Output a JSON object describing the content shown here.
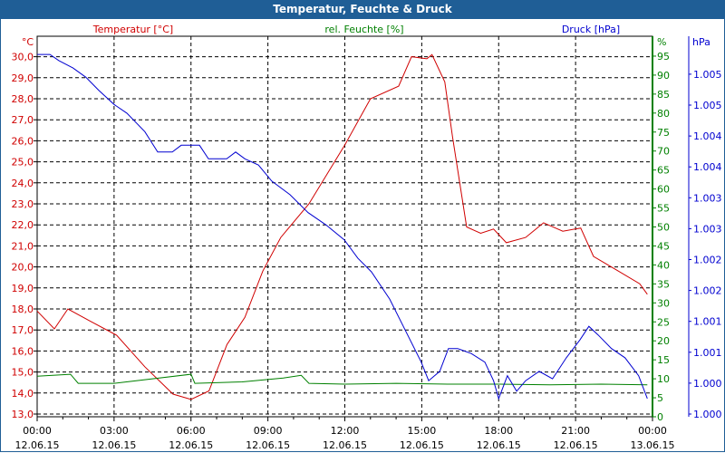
{
  "title": "Temperatur, Feuchte & Druck",
  "chart_data": {
    "type": "line",
    "title": "Temperatur, Feuchte & Druck",
    "xlim": [
      0,
      24
    ],
    "x_ticks": [
      {
        "time": "00:00",
        "date": "12.06.15"
      },
      {
        "time": "03:00",
        "date": "12.06.15"
      },
      {
        "time": "06:00",
        "date": "12.06.15"
      },
      {
        "time": "09:00",
        "date": "12.06.15"
      },
      {
        "time": "12:00",
        "date": "12.06.15"
      },
      {
        "time": "15:00",
        "date": "12.06.15"
      },
      {
        "time": "18:00",
        "date": "12.06.15"
      },
      {
        "time": "21:00",
        "date": "12.06.15"
      },
      {
        "time": "00:00",
        "date": "13.06.15"
      }
    ],
    "grid": true,
    "axes": {
      "temp": {
        "label": "Temperatur [°C]",
        "unit": "°C",
        "color": "#d00000",
        "ticks": [
          "13,0",
          "14,0",
          "15,0",
          "16,0",
          "17,0",
          "18,0",
          "19,0",
          "20,0",
          "21,0",
          "22,0",
          "23,0",
          "24,0",
          "25,0",
          "26,0",
          "27,0",
          "28,0",
          "29,0",
          "30,0"
        ]
      },
      "hum": {
        "label": "rel. Feuchte [%]",
        "unit": "%",
        "color": "#008000",
        "ticks": [
          "0",
          "5",
          "10",
          "15",
          "20",
          "25",
          "30",
          "35",
          "40",
          "45",
          "50",
          "55",
          "60",
          "65",
          "70",
          "75",
          "80",
          "85",
          "90",
          "95"
        ]
      },
      "press": {
        "label": "Druck [hPa]",
        "unit": "hPa",
        "color": "#0000d0",
        "ticks": [
          "1.000",
          "1.000",
          "1.001",
          "1.001",
          "1.002",
          "1.002",
          "1.003",
          "1.003",
          "1.004",
          "1.004",
          "1.005",
          "1.005"
        ]
      }
    },
    "series": [
      {
        "name": "Temperatur",
        "axis": "temp",
        "color": "#d00000",
        "x": [
          0,
          0.67,
          1.2,
          2.1,
          3.1,
          4.2,
          5.3,
          6.0,
          6.7,
          7.4,
          8.1,
          8.8,
          9.5,
          10.6,
          12.0,
          13.0,
          14.1,
          14.6,
          15.2,
          15.4,
          15.9,
          16.2,
          16.75,
          17.3,
          17.8,
          18.3,
          19.05,
          19.75,
          20.5,
          21.2,
          21.7,
          22.6,
          23.5,
          23.8
        ],
        "y": [
          17.9,
          17.05,
          18.0,
          17.4,
          16.75,
          15.25,
          13.95,
          13.7,
          14.1,
          16.3,
          17.6,
          19.8,
          21.4,
          23.0,
          25.8,
          28.0,
          28.6,
          30.0,
          29.9,
          30.1,
          28.8,
          26.2,
          21.9,
          21.6,
          21.8,
          21.15,
          21.4,
          22.1,
          21.7,
          21.85,
          20.5,
          19.85,
          19.2,
          18.7
        ]
      },
      {
        "name": "rel. Feuchte",
        "axis": "hum",
        "color": "#008000",
        "x": [
          0,
          1.3,
          1.6,
          3.0,
          6.0,
          6.0,
          6.15,
          8.0,
          9.6,
          10.3,
          10.6,
          12,
          14,
          16,
          18,
          20,
          22,
          23.8
        ],
        "y": [
          10.7,
          11.2,
          8.8,
          8.8,
          11.2,
          11.2,
          8.8,
          9.2,
          10.2,
          10.9,
          8.8,
          8.6,
          8.8,
          8.6,
          8.6,
          8.4,
          8.6,
          8.4
        ]
      },
      {
        "name": "Druck",
        "axis": "press",
        "color": "#0000d0",
        "x": [
          0,
          0.5,
          0.85,
          1.4,
          1.9,
          2.4,
          3.0,
          3.5,
          4.2,
          4.7,
          5.27,
          5.62,
          6.33,
          6.68,
          7.39,
          7.74,
          8.1,
          8.63,
          9.15,
          9.86,
          10.57,
          11.27,
          11.98,
          12.51,
          13.04,
          13.75,
          14.45,
          14.98,
          15.27,
          15.7,
          16.04,
          16.4,
          16.93,
          17.46,
          17.8,
          18.0,
          18.34,
          18.7,
          19.05,
          19.58,
          20.1,
          20.64,
          21.17,
          21.52,
          21.88,
          22.4,
          22.93,
          23.46,
          23.8
        ],
        "y": [
          1.00582,
          1.00582,
          1.00572,
          1.0056,
          1.00545,
          1.00524,
          1.00501,
          1.00487,
          1.00457,
          1.00424,
          1.00424,
          1.00435,
          1.00435,
          1.00413,
          1.00413,
          1.00424,
          1.00413,
          1.00403,
          1.00377,
          1.00355,
          1.00326,
          1.00306,
          1.00282,
          1.00252,
          1.0023,
          1.00186,
          1.00128,
          1.00084,
          1.00054,
          1.00069,
          1.00106,
          1.00106,
          1.00098,
          1.00084,
          1.00054,
          1.00025,
          1.00062,
          1.00037,
          1.00054,
          1.00069,
          1.00057,
          1.00091,
          1.0012,
          1.00142,
          1.00128,
          1.00106,
          1.00091,
          1.00062,
          1.00025
        ]
      }
    ]
  }
}
